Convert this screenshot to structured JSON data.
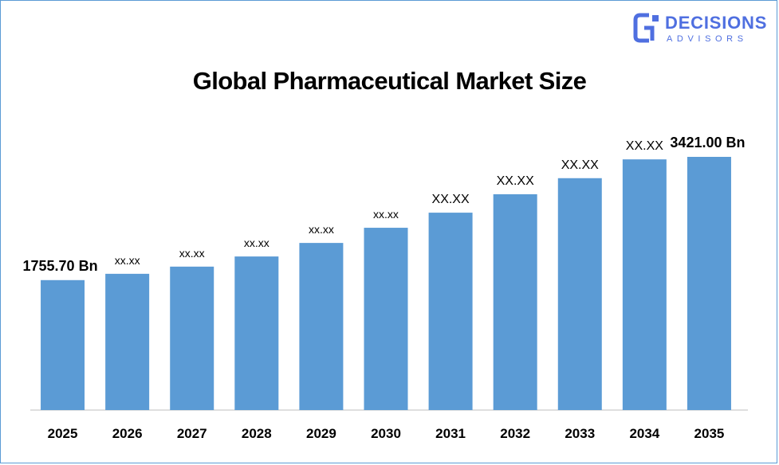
{
  "brand": {
    "line1": "DECISIONS",
    "line2": "ADVISORS",
    "color": "#4f6fe0"
  },
  "chart_data": {
    "type": "bar",
    "title": "Global Pharmaceutical Market Size",
    "categories": [
      "2025",
      "2026",
      "2027",
      "2028",
      "2029",
      "2030",
      "2031",
      "2032",
      "2033",
      "2034",
      "2035"
    ],
    "values": [
      1755.7,
      1841,
      1938,
      2075,
      2258,
      2463,
      2667,
      2916,
      3133,
      3387,
      3421.0
    ],
    "data_labels": [
      "1755.70 Bn",
      "xx.xx",
      "xx.xx",
      "xx.xx",
      "xx.xx",
      "xx.xx",
      "XX.XX",
      "XX.XX",
      "XX.XX",
      "XX.XX",
      "3421.00 Bn"
    ],
    "xlabel": "",
    "ylabel": "",
    "ylim": [
      0,
      3800
    ],
    "bar_color": "#5b9bd5",
    "grid": false,
    "legend": "none"
  }
}
